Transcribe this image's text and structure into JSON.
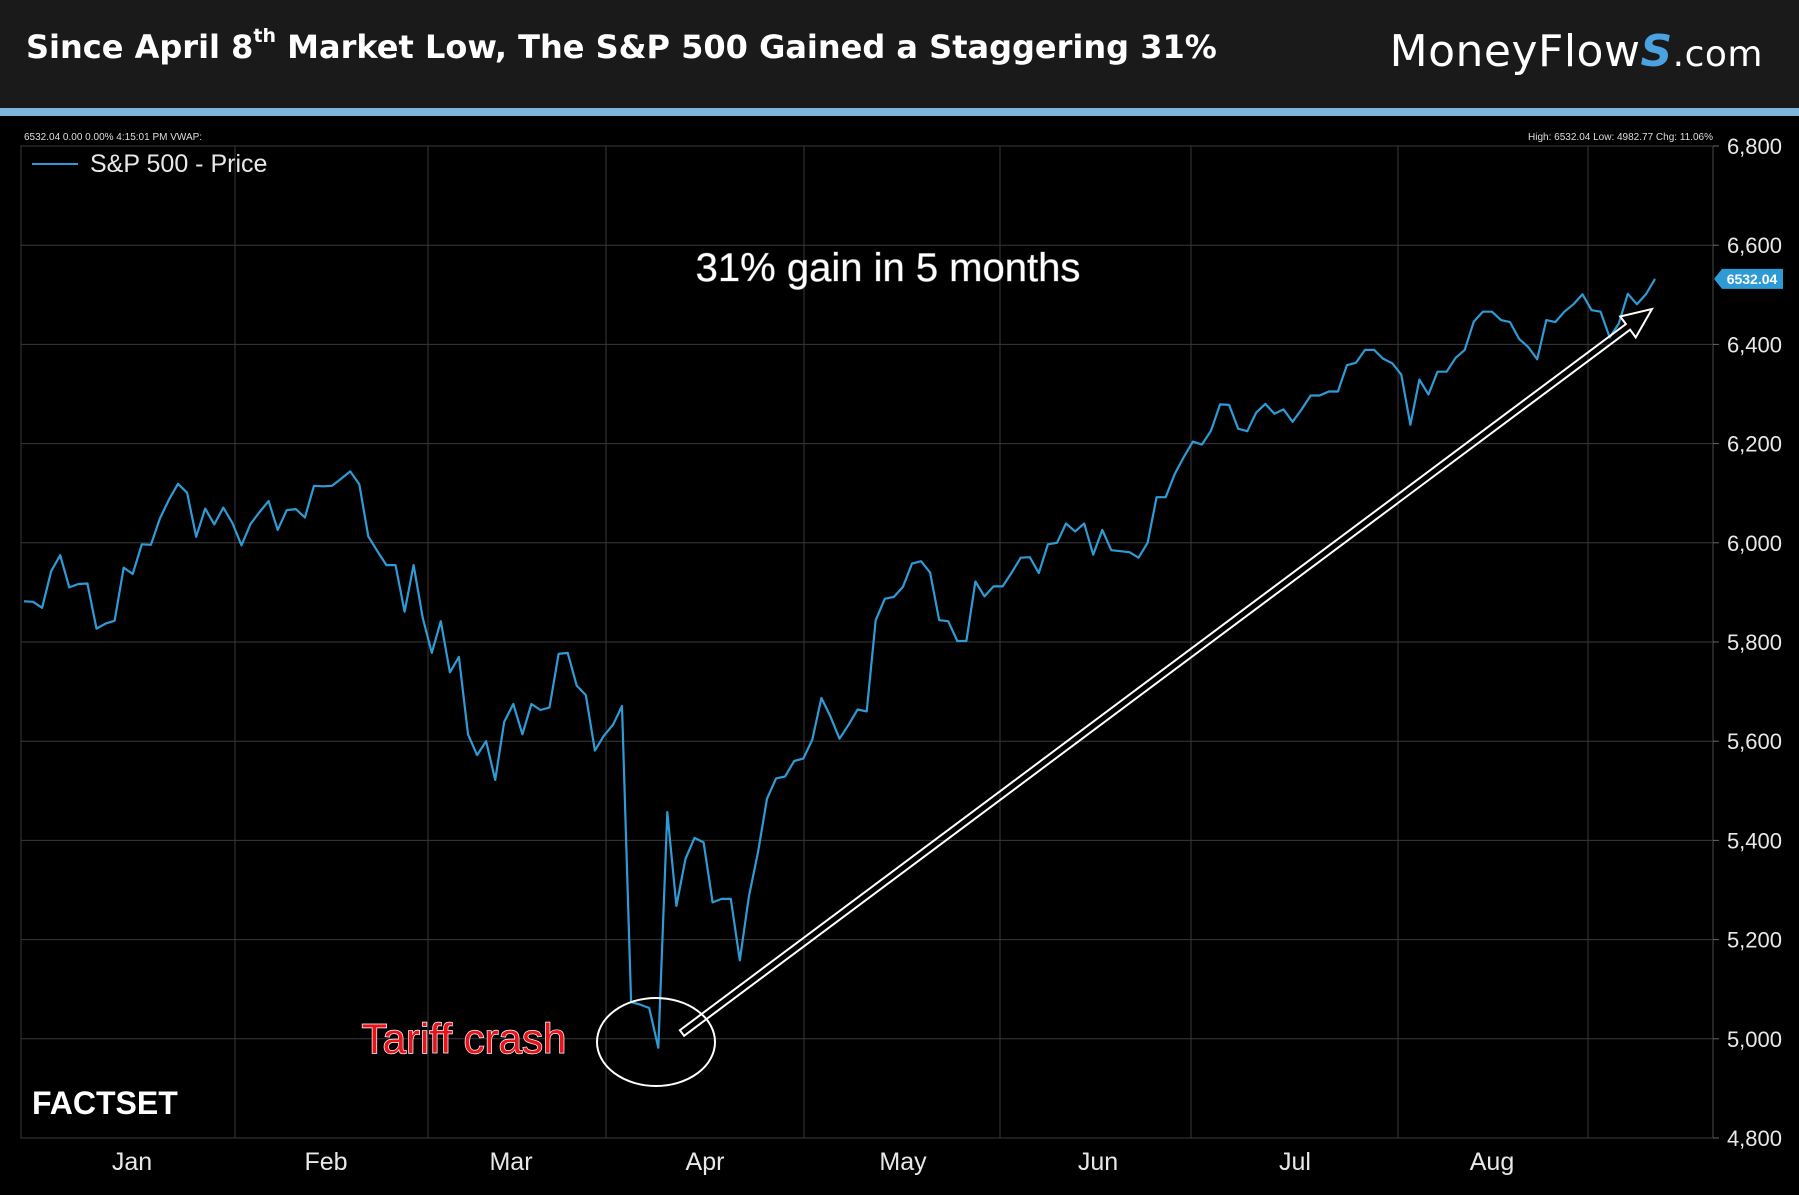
{
  "header": {
    "title_pre": "Since April 8",
    "title_sup": "th",
    "title_post": " Market Low, The S&P 500 Gained a Staggering 31%",
    "brand_main": "MoneyFlow",
    "brand_accent": "S",
    "brand_domain": ".com"
  },
  "chart_info": {
    "top_left": "6532.04 0.00 0.00% 4:15:01 PM VWAP:",
    "top_right": "High: 6532.04 Low: 4982.77 Chg: 11.06%",
    "last_price": "6532.04",
    "gain_annotation": "31% gain in 5 months",
    "crash_annotation": "Tariff crash",
    "source_logo": "FACTSET"
  },
  "colors": {
    "line": "#2e9bd6",
    "background": "#000000",
    "header_bg": "#1a1a1a",
    "header_rule": "#7fb4dc",
    "crash_label": "#e8141b",
    "grid": "#3a3a3a"
  },
  "chart_data": {
    "type": "line",
    "title": "Since April 8th Market Low, The S&P 500 Gained a Staggering 31%",
    "xlabel": "",
    "ylabel": "",
    "ylim": [
      4800,
      6800
    ],
    "yticks": [
      "4,800",
      "5,000",
      "5,200",
      "5,400",
      "5,600",
      "5,800",
      "6,000",
      "6,200",
      "6,400",
      "6,600",
      "6,800"
    ],
    "xticks": [
      "Jan",
      "Feb",
      "Mar",
      "Apr",
      "May",
      "Jun",
      "Jul",
      "Aug"
    ],
    "grid": true,
    "legend": "top-left",
    "series": [
      {
        "name": "S&P 500 - Price",
        "values": [
          5882,
          5881,
          5869,
          5943,
          5975,
          5910,
          5917,
          5918,
          5827,
          5837,
          5843,
          5950,
          5937,
          5997,
          5996,
          6049,
          6087,
          6119,
          6101,
          6012,
          6069,
          6037,
          6071,
          6040,
          5995,
          6038,
          6062,
          6084,
          6026,
          6066,
          6068,
          6051,
          6115,
          6114,
          6115,
          6129,
          6144,
          6118,
          6013,
          5983,
          5955,
          5955,
          5861,
          5955,
          5849,
          5778,
          5842,
          5739,
          5770,
          5614,
          5572,
          5600,
          5522,
          5639,
          5675,
          5614,
          5675,
          5663,
          5668,
          5776,
          5778,
          5712,
          5693,
          5581,
          5611,
          5633,
          5671,
          5074,
          5069,
          5062,
          4982,
          5457,
          5268,
          5363,
          5405,
          5396,
          5275,
          5282,
          5282,
          5158,
          5287,
          5376,
          5484,
          5525,
          5529,
          5560,
          5565,
          5603,
          5687,
          5650,
          5605,
          5633,
          5664,
          5660,
          5844,
          5887,
          5891,
          5911,
          5958,
          5963,
          5940,
          5844,
          5842,
          5802,
          5802,
          5922,
          5892,
          5912,
          5912,
          5940,
          5970,
          5971,
          5939,
          5997,
          6000,
          6039,
          6023,
          6039,
          5976,
          6026,
          5985,
          5983,
          5981,
          5970,
          6000,
          6092,
          6092,
          6139,
          6173,
          6204,
          6198,
          6226,
          6279,
          6278,
          6230,
          6225,
          6263,
          6280,
          6260,
          6269,
          6244,
          6269,
          6297,
          6297,
          6305,
          6305,
          6358,
          6363,
          6389,
          6389,
          6371,
          6362,
          6339,
          6238,
          6329,
          6299,
          6345,
          6345,
          6373,
          6389,
          6446,
          6466,
          6466,
          6449,
          6445,
          6411,
          6395,
          6370,
          6449,
          6445,
          6466,
          6481,
          6501,
          6469,
          6466,
          6414,
          6442,
          6502,
          6481,
          6501,
          6532
        ]
      }
    ]
  }
}
